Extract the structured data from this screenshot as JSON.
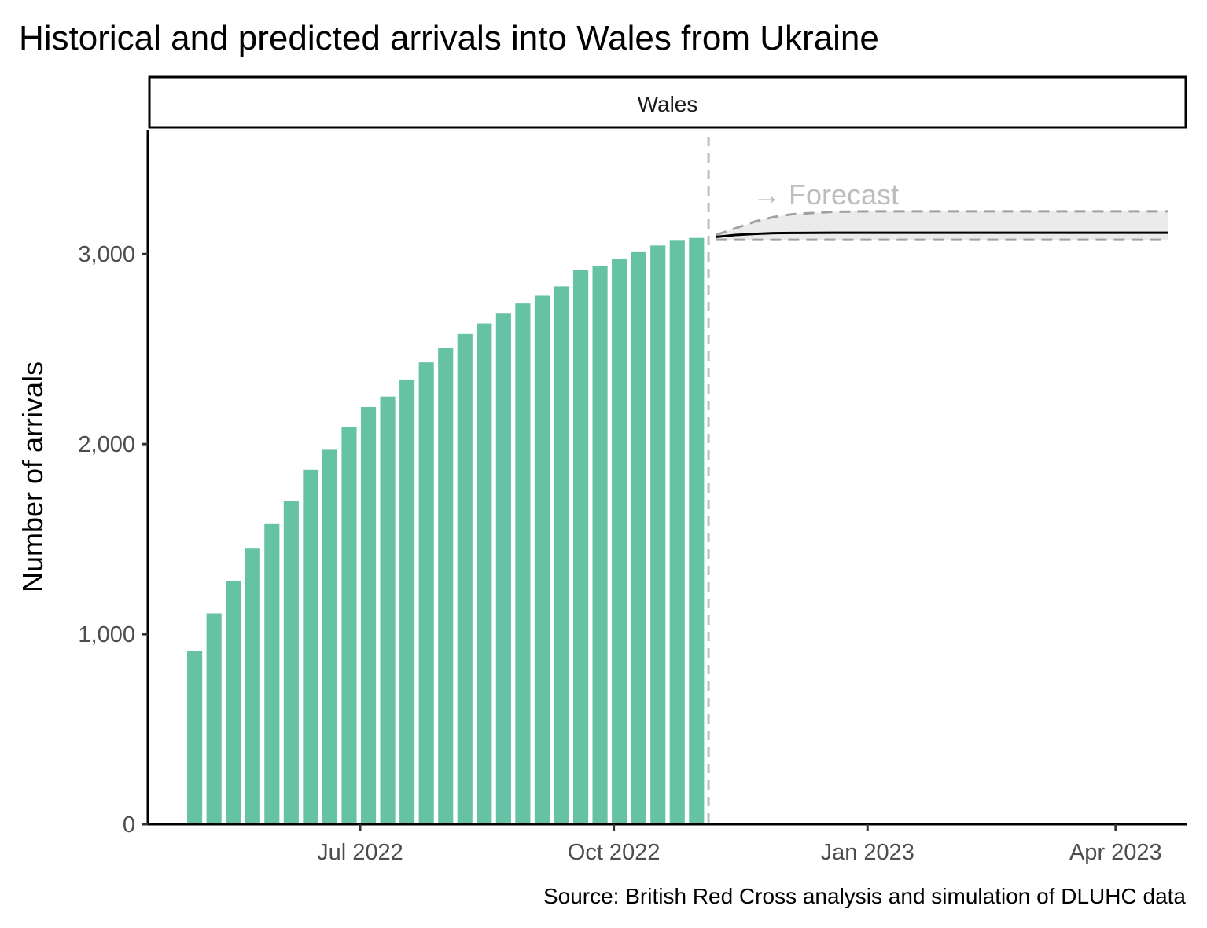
{
  "chart_data": {
    "type": "bar",
    "title": "Historical and predicted arrivals into Wales from Ukraine",
    "facet_label": "Wales",
    "ylabel": "Number of arrivals",
    "xlabel": "",
    "caption": "Source: British Red Cross analysis and simulation of DLUHC data",
    "forecast_label": "→ Forecast",
    "ylim": [
      0,
      3650
    ],
    "xlim": [
      "2022-04-15",
      "2023-04-27"
    ],
    "y_ticks": [
      0,
      1000,
      2000,
      3000
    ],
    "y_tick_labels": [
      "0",
      "1,000",
      "2,000",
      "3,000"
    ],
    "x_ticks": [
      "2022-07-01",
      "2022-10-01",
      "2023-01-01",
      "2023-04-01"
    ],
    "x_tick_labels": [
      "Jul 2022",
      "Oct 2022",
      "Jan 2023",
      "Apr 2023"
    ],
    "forecast_start": "2022-11-07",
    "grid": false,
    "legend": "none",
    "colors": {
      "bars": "#66c2a5",
      "forecast_line": "#000000",
      "interval_band": "#ebebeb",
      "interval_lines": "#a0a0a0",
      "divider_line": "#bdbdbd"
    },
    "bars": {
      "name": "Historical arrivals",
      "x": [
        "2022-05-02",
        "2022-05-09",
        "2022-05-16",
        "2022-05-23",
        "2022-05-30",
        "2022-06-06",
        "2022-06-13",
        "2022-06-20",
        "2022-06-27",
        "2022-07-04",
        "2022-07-11",
        "2022-07-18",
        "2022-07-25",
        "2022-08-01",
        "2022-08-08",
        "2022-08-15",
        "2022-08-22",
        "2022-08-29",
        "2022-09-05",
        "2022-09-12",
        "2022-09-19",
        "2022-09-26",
        "2022-10-03",
        "2022-10-10",
        "2022-10-17",
        "2022-10-24",
        "2022-10-31"
      ],
      "values": [
        910,
        1110,
        1280,
        1450,
        1580,
        1700,
        1865,
        1970,
        2090,
        2195,
        2250,
        2340,
        2430,
        2505,
        2580,
        2635,
        2690,
        2740,
        2780,
        2830,
        2915,
        2935,
        2975,
        3010,
        3045,
        3070,
        3085
      ]
    },
    "forecast": {
      "x": [
        "2022-11-07",
        "2022-11-14",
        "2022-11-21",
        "2022-11-28",
        "2022-12-05",
        "2022-12-19",
        "2023-01-02",
        "2023-02-01",
        "2023-03-01",
        "2023-04-01",
        "2023-04-20"
      ],
      "mean": [
        3090,
        3100,
        3106,
        3110,
        3111,
        3112,
        3112,
        3112,
        3112,
        3112,
        3112
      ],
      "upper": [
        3100,
        3135,
        3170,
        3195,
        3210,
        3222,
        3225,
        3225,
        3225,
        3225,
        3225
      ],
      "lower": [
        3075,
        3075,
        3075,
        3075,
        3075,
        3075,
        3075,
        3075,
        3075,
        3075,
        3075
      ]
    }
  }
}
